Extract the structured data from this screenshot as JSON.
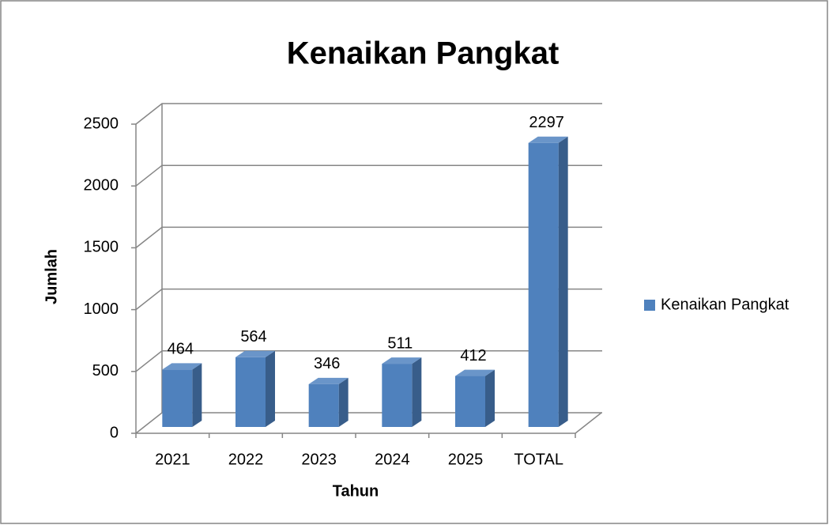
{
  "chart_data": {
    "type": "bar",
    "title": "Kenaikan Pangkat",
    "x_label": "Tahun",
    "y_label": "Jumlah",
    "categories": [
      "2021",
      "2022",
      "2023",
      "2024",
      "2025",
      "TOTAL"
    ],
    "series": [
      {
        "name": "Kenaikan Pangkat",
        "color": "#4f81bd",
        "values": [
          464,
          564,
          346,
          511,
          412,
          2297
        ]
      }
    ],
    "ylim": [
      0,
      2500
    ],
    "yticks": [
      0,
      500,
      1000,
      1500,
      2000,
      2500
    ],
    "grid": true,
    "legend": "right"
  }
}
